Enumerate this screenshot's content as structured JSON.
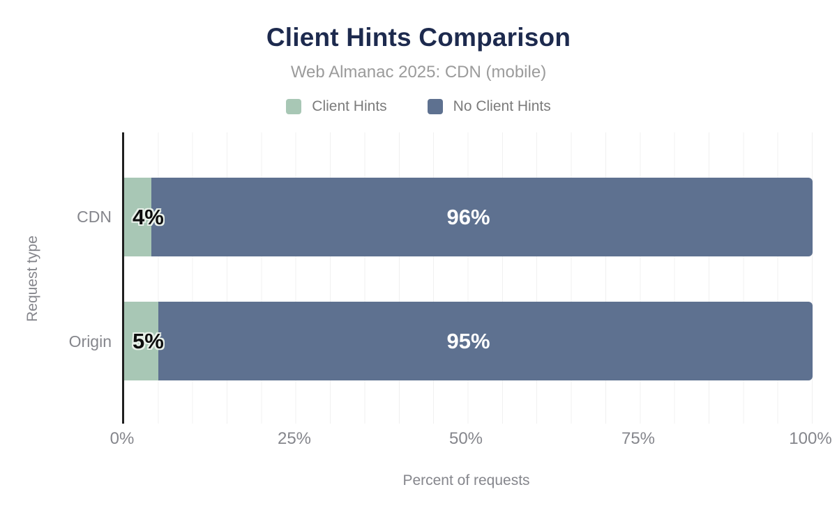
{
  "title": "Client Hints Comparison",
  "subtitle": "Web Almanac 2025: CDN (mobile)",
  "colors": {
    "title_navy": "#1d2a4e",
    "client_hints_green": "#a8c7b5",
    "no_client_hints_slate": "#5e7190",
    "axis_text_gray": "#85868c",
    "gridline": "#f0f0f0",
    "axis_line": "#1f1f1f",
    "label_on_green": "#0d0d0d",
    "label_on_blue": "#ffffff"
  },
  "legend": [
    {
      "label": "Client Hints",
      "color": "#a8c7b5"
    },
    {
      "label": "No Client Hints",
      "color": "#5e7190"
    }
  ],
  "chart_data": {
    "type": "bar",
    "orientation": "horizontal",
    "stacked": true,
    "title": "Client Hints Comparison",
    "subtitle": "Web Almanac 2025: CDN (mobile)",
    "categories": [
      "CDN",
      "Origin"
    ],
    "series": [
      {
        "name": "Client Hints",
        "color": "#a8c7b5",
        "values": [
          4,
          5
        ]
      },
      {
        "name": "No Client Hints",
        "color": "#5e7190",
        "values": [
          96,
          95
        ]
      }
    ],
    "bar_labels": [
      [
        "4%",
        "96%"
      ],
      [
        "5%",
        "95%"
      ]
    ],
    "xlabel": "Percent of requests",
    "ylabel": "Request type",
    "xlim": [
      0,
      100
    ],
    "xticks": [
      "0%",
      "25%",
      "50%",
      "75%",
      "100%"
    ],
    "grid": "vertical lines every 5%, no horizontal gridlines",
    "legend_position": "top center"
  }
}
